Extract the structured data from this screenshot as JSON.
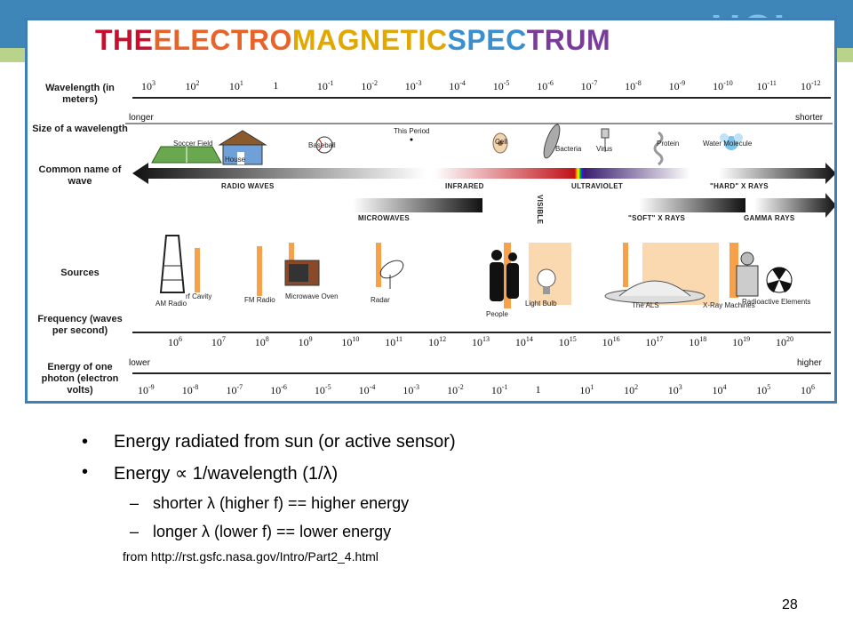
{
  "figure": {
    "title_words": [
      {
        "text": "THE ",
        "color": "#c8102e"
      },
      {
        "text": "ELECTRO",
        "color": "#e8632a"
      },
      {
        "text": "MAGNETIC ",
        "color": "#e0a800"
      },
      {
        "text": "SPEC",
        "color": "#3a8fd0"
      },
      {
        "text": "TRUM",
        "color": "#7a3c9a"
      }
    ],
    "row_labels": {
      "wavelength": "Wavelength (in meters)",
      "size": "Size of a wavelength",
      "common_name": "Common name of wave",
      "sources": "Sources",
      "frequency": "Frequency (waves per second)",
      "energy": "Energy of one photon (electron volts)"
    },
    "wavelength_ticks": [
      {
        "b": "10",
        "e": "3"
      },
      {
        "b": "10",
        "e": "2"
      },
      {
        "b": "10",
        "e": "1"
      },
      {
        "b": "1",
        "e": ""
      },
      {
        "b": "10",
        "e": "-1"
      },
      {
        "b": "10",
        "e": "-2"
      },
      {
        "b": "10",
        "e": "-3"
      },
      {
        "b": "10",
        "e": "-4"
      },
      {
        "b": "10",
        "e": "-5"
      },
      {
        "b": "10",
        "e": "-6"
      },
      {
        "b": "10",
        "e": "-7"
      },
      {
        "b": "10",
        "e": "-8"
      },
      {
        "b": "10",
        "e": "-9"
      },
      {
        "b": "10",
        "e": "-10"
      },
      {
        "b": "10",
        "e": "-11"
      },
      {
        "b": "10",
        "e": "-12"
      }
    ],
    "size_ends": {
      "left": "longer",
      "right": "shorter"
    },
    "size_objects": [
      "Soccer Field",
      "House",
      "Baseball",
      "This Period",
      "Cell",
      "Bacteria",
      "Virus",
      "Protein",
      "Water Molecule"
    ],
    "bands": {
      "radio": "RADIO WAVES",
      "infrared": "INFRARED",
      "visible": "VISIBLE",
      "ultraviolet": "ULTRAVIOLET",
      "hard_xrays": "\"HARD\" X RAYS",
      "microwaves": "MICROWAVES",
      "soft_xrays": "\"SOFT\" X RAYS",
      "gamma": "GAMMA RAYS"
    },
    "sources": [
      "AM Radio",
      "rf Cavity",
      "FM Radio",
      "Microwave Oven",
      "Radar",
      "People",
      "Light Bulb",
      "The ALS",
      "X-Ray Machines",
      "Radioactive Elements"
    ],
    "frequency_ticks": [
      {
        "b": "10",
        "e": "6"
      },
      {
        "b": "10",
        "e": "7"
      },
      {
        "b": "10",
        "e": "8"
      },
      {
        "b": "10",
        "e": "9"
      },
      {
        "b": "10",
        "e": "10"
      },
      {
        "b": "10",
        "e": "11"
      },
      {
        "b": "10",
        "e": "12"
      },
      {
        "b": "10",
        "e": "13"
      },
      {
        "b": "10",
        "e": "14"
      },
      {
        "b": "10",
        "e": "15"
      },
      {
        "b": "10",
        "e": "16"
      },
      {
        "b": "10",
        "e": "17"
      },
      {
        "b": "10",
        "e": "18"
      },
      {
        "b": "10",
        "e": "19"
      },
      {
        "b": "10",
        "e": "20"
      }
    ],
    "energy_ends": {
      "left": "lower",
      "right": "higher"
    },
    "energy_ticks": [
      {
        "b": "10",
        "e": "-9"
      },
      {
        "b": "10",
        "e": "-8"
      },
      {
        "b": "10",
        "e": "-7"
      },
      {
        "b": "10",
        "e": "-6"
      },
      {
        "b": "10",
        "e": "-5"
      },
      {
        "b": "10",
        "e": "-4"
      },
      {
        "b": "10",
        "e": "-3"
      },
      {
        "b": "10",
        "e": "-2"
      },
      {
        "b": "10",
        "e": "-1"
      },
      {
        "b": "1",
        "e": ""
      },
      {
        "b": "10",
        "e": "1"
      },
      {
        "b": "10",
        "e": "2"
      },
      {
        "b": "10",
        "e": "3"
      },
      {
        "b": "10",
        "e": "4"
      },
      {
        "b": "10",
        "e": "5"
      },
      {
        "b": "10",
        "e": "6"
      }
    ]
  },
  "bullets": [
    "Energy radiated from sun (or active sensor)",
    "Energy ∝ 1/wavelength (1/λ)"
  ],
  "sub_bullets": [
    "shorter λ (higher f) == higher energy",
    "longer λ (lower f) == lower energy"
  ],
  "bullet_marker": "•",
  "sub_marker": "–",
  "source_line": "from http://rst.gsfc.nasa.gov/Intro/Part2_4.html",
  "slide_number": "28",
  "colors": {
    "header_blue": "#3f86b8",
    "header_green": "#b9d48a",
    "frame_blue": "#3d7fb6",
    "band_orange": "#f7a24a"
  }
}
